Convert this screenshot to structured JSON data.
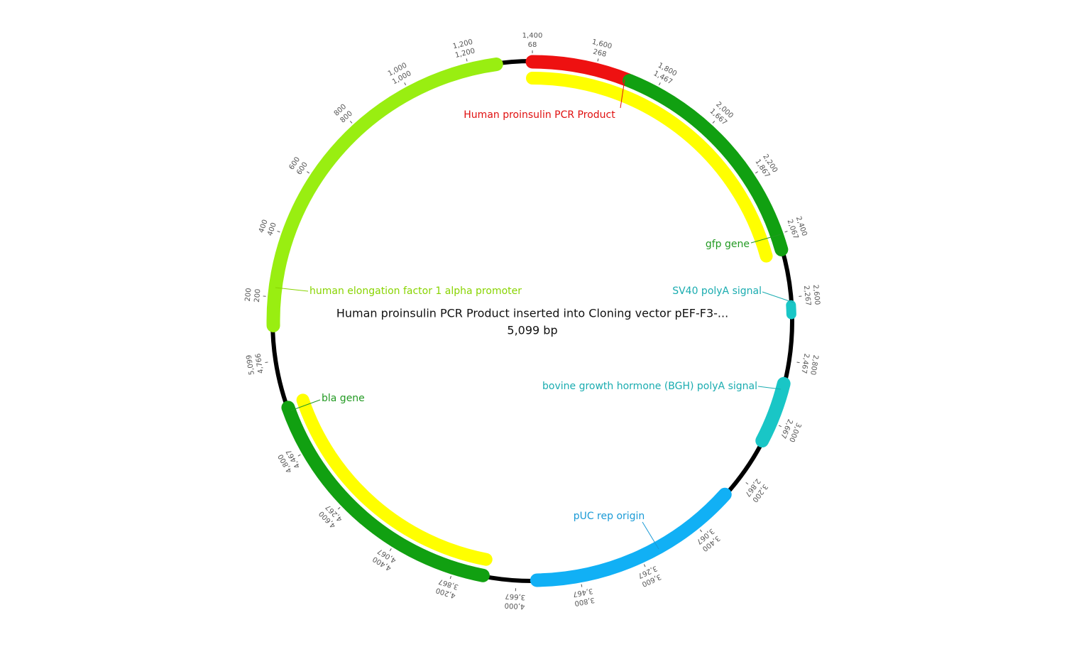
{
  "title": "Human proinsulin PCR Product inserted into Cloning vector pEF-F3-...",
  "length": "5,099 bp",
  "features": [
    {
      "label": "human elongation factor 1 alpha promoter"
    },
    {
      "label": "Human proinsulin PCR Product"
    },
    {
      "label": "gfp gene"
    },
    {
      "label": "SV40 polyA signal"
    },
    {
      "label": "bovine growth hormone (BGH) polyA signal"
    },
    {
      "label": "pUC rep origin"
    },
    {
      "label": "bla gene"
    }
  ],
  "ticks": [
    {
      "value": 200,
      "label": "200",
      "inner": "200"
    },
    {
      "value": 400,
      "label": "400",
      "inner": "400"
    },
    {
      "value": 600,
      "label": "600",
      "inner": "600"
    },
    {
      "value": 800,
      "label": "800",
      "inner": "800"
    },
    {
      "value": 1000,
      "label": "1,000",
      "inner": "1,000"
    },
    {
      "value": 1200,
      "label": "1,200",
      "inner": "1,200"
    },
    {
      "value": 1400,
      "label": "1,400",
      "inner": "68"
    },
    {
      "value": 1600,
      "label": "1,600",
      "inner": "268"
    },
    {
      "value": 1800,
      "label": "1,800",
      "inner": "1,467"
    },
    {
      "value": 2000,
      "label": "2,000",
      "inner": "1,667"
    },
    {
      "value": 2200,
      "label": "2,200",
      "inner": "1,867"
    },
    {
      "value": 2400,
      "label": "2,400",
      "inner": "2,067"
    },
    {
      "value": 2600,
      "label": "2,600",
      "inner": "2,267"
    },
    {
      "value": 2800,
      "label": "2,800",
      "inner": "2,467"
    },
    {
      "value": 3000,
      "label": "3,000",
      "inner": "2,667"
    },
    {
      "value": 3200,
      "label": "3,200",
      "inner": "2,867"
    },
    {
      "value": 3400,
      "label": "3,400",
      "inner": "3,067"
    },
    {
      "value": 3600,
      "label": "3,600",
      "inner": "3,267"
    },
    {
      "value": 3800,
      "label": "3,800",
      "inner": "3,467"
    },
    {
      "value": 4000,
      "label": "4,000",
      "inner": "3,667"
    },
    {
      "value": 4200,
      "label": "4,200",
      "inner": "3,867"
    },
    {
      "value": 4400,
      "label": "4,400",
      "inner": "4,067"
    },
    {
      "value": 4600,
      "label": "4,600",
      "inner": "4,267"
    },
    {
      "value": 4800,
      "label": "4,800",
      "inner": "4,467"
    },
    {
      "value": 5099,
      "label": "5,099",
      "inner": "4,766"
    }
  ]
}
